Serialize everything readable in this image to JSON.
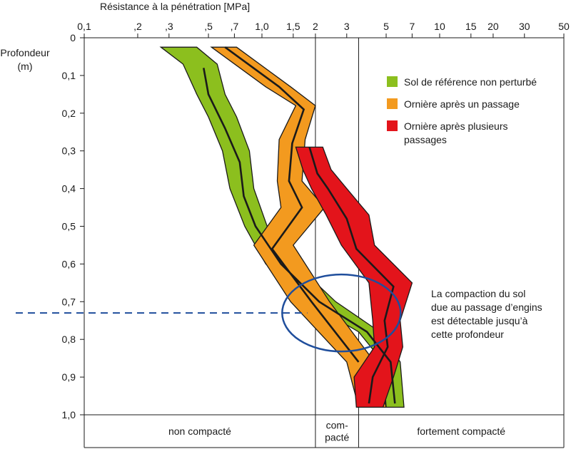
{
  "chart_data": {
    "type": "line",
    "x_axis": {
      "title": "Résistance à la pénétration [MPa]",
      "scale": "log",
      "range": [
        0.1,
        50
      ],
      "ticks": [
        {
          "value": 0.1,
          "label": "0,1"
        },
        {
          "value": 0.2,
          "label": ",2"
        },
        {
          "value": 0.3,
          "label": ",3"
        },
        {
          "value": 0.5,
          "label": ",5"
        },
        {
          "value": 0.7,
          "label": ",7"
        },
        {
          "value": 1.0,
          "label": "1,0"
        },
        {
          "value": 1.5,
          "label": "1,5"
        },
        {
          "value": 2,
          "label": "2"
        },
        {
          "value": 3,
          "label": "3"
        },
        {
          "value": 5,
          "label": "5"
        },
        {
          "value": 7,
          "label": "7"
        },
        {
          "value": 10,
          "label": "10"
        },
        {
          "value": 15,
          "label": "15"
        },
        {
          "value": 20,
          "label": "20"
        },
        {
          "value": 30,
          "label": "30"
        },
        {
          "value": 50,
          "label": "50"
        }
      ],
      "position": "top"
    },
    "y_axis": {
      "title": "Profondeur\n(m)",
      "title_lines": [
        "Profondeur",
        "(m)"
      ],
      "range": [
        0,
        1.0
      ],
      "inverted": true,
      "ticks": [
        {
          "value": 0,
          "label": "0"
        },
        {
          "value": 0.1,
          "label": "0,1"
        },
        {
          "value": 0.2,
          "label": "0,2"
        },
        {
          "value": 0.3,
          "label": "0,3"
        },
        {
          "value": 0.4,
          "label": "0,4"
        },
        {
          "value": 0.5,
          "label": "0,5"
        },
        {
          "value": 0.6,
          "label": "0,6"
        },
        {
          "value": 0.7,
          "label": "0,7"
        },
        {
          "value": 0.8,
          "label": "0,8"
        },
        {
          "value": 0.9,
          "label": "0,9"
        },
        {
          "value": 1.0,
          "label": "1,0"
        }
      ]
    },
    "grid": false,
    "series": [
      {
        "name": "Sol de référence non perturbé",
        "color": "#8cbf1e",
        "band": [
          {
            "depth": 0.025,
            "low": 0.27,
            "high": 0.43
          },
          {
            "depth": 0.07,
            "low": 0.36,
            "high": 0.56
          },
          {
            "depth": 0.15,
            "low": 0.43,
            "high": 0.62
          },
          {
            "depth": 0.21,
            "low": 0.5,
            "high": 0.72
          },
          {
            "depth": 0.3,
            "low": 0.6,
            "high": 0.85
          },
          {
            "depth": 0.4,
            "low": 0.66,
            "high": 0.9
          },
          {
            "depth": 0.5,
            "low": 0.8,
            "high": 1.07
          },
          {
            "depth": 0.6,
            "low": 1.05,
            "high": 1.55
          },
          {
            "depth": 0.7,
            "low": 1.8,
            "high": 2.6
          },
          {
            "depth": 0.78,
            "low": 3.5,
            "high": 4.6
          },
          {
            "depth": 0.86,
            "low": 4.8,
            "high": 6.0
          },
          {
            "depth": 0.98,
            "low": 5.0,
            "high": 6.3
          }
        ],
        "mean": [
          {
            "depth": 0.08,
            "value": 0.47
          },
          {
            "depth": 0.15,
            "value": 0.5
          },
          {
            "depth": 0.24,
            "value": 0.62
          },
          {
            "depth": 0.33,
            "value": 0.75
          },
          {
            "depth": 0.42,
            "value": 0.79
          },
          {
            "depth": 0.5,
            "value": 0.92
          },
          {
            "depth": 0.6,
            "value": 1.28
          },
          {
            "depth": 0.7,
            "value": 2.1
          },
          {
            "depth": 0.78,
            "value": 3.9
          },
          {
            "depth": 0.86,
            "value": 5.3
          },
          {
            "depth": 0.97,
            "value": 5.6
          }
        ]
      },
      {
        "name": "Ornière après un passage",
        "color": "#f39a1f",
        "band": [
          {
            "depth": 0.025,
            "low": 0.52,
            "high": 0.72
          },
          {
            "depth": 0.13,
            "low": 1.05,
            "high": 1.45
          },
          {
            "depth": 0.18,
            "low": 1.55,
            "high": 2.0
          },
          {
            "depth": 0.27,
            "low": 1.25,
            "high": 1.75
          },
          {
            "depth": 0.38,
            "low": 1.22,
            "high": 1.68
          },
          {
            "depth": 0.45,
            "low": 1.28,
            "high": 2.25
          },
          {
            "depth": 0.55,
            "low": 0.9,
            "high": 1.5
          },
          {
            "depth": 0.7,
            "low": 1.45,
            "high": 2.4
          },
          {
            "depth": 0.86,
            "low": 3.0,
            "high": 4.3
          },
          {
            "depth": 0.98,
            "low": 3.5,
            "high": 5.0
          }
        ],
        "mean": [
          {
            "depth": 0.025,
            "value": 0.62
          },
          {
            "depth": 0.13,
            "value": 1.25
          },
          {
            "depth": 0.19,
            "value": 1.72
          },
          {
            "depth": 0.28,
            "value": 1.48
          },
          {
            "depth": 0.38,
            "value": 1.42
          },
          {
            "depth": 0.45,
            "value": 1.68
          },
          {
            "depth": 0.56,
            "value": 1.14
          },
          {
            "depth": 0.7,
            "value": 1.9
          },
          {
            "depth": 0.86,
            "value": 3.5
          }
        ]
      },
      {
        "name": "Ornière après plusieurs passages",
        "color": "#e3141b",
        "band": [
          {
            "depth": 0.29,
            "low": 1.55,
            "high": 2.2
          },
          {
            "depth": 0.35,
            "low": 1.7,
            "high": 2.45
          },
          {
            "depth": 0.4,
            "low": 1.9,
            "high": 3.0
          },
          {
            "depth": 0.47,
            "low": 2.3,
            "high": 4.0
          },
          {
            "depth": 0.55,
            "low": 2.8,
            "high": 4.3
          },
          {
            "depth": 0.65,
            "low": 4.0,
            "high": 7.0
          },
          {
            "depth": 0.75,
            "low": 4.2,
            "high": 6.0
          },
          {
            "depth": 0.82,
            "low": 4.3,
            "high": 6.2
          },
          {
            "depth": 0.9,
            "low": 3.3,
            "high": 5.5
          },
          {
            "depth": 0.98,
            "low": 3.4,
            "high": 4.8
          }
        ],
        "mean": [
          {
            "depth": 0.29,
            "value": 1.85
          },
          {
            "depth": 0.36,
            "value": 2.05
          },
          {
            "depth": 0.4,
            "value": 2.35
          },
          {
            "depth": 0.48,
            "value": 3.0
          },
          {
            "depth": 0.56,
            "value": 3.4
          },
          {
            "depth": 0.66,
            "value": 5.5
          },
          {
            "depth": 0.75,
            "value": 4.9
          },
          {
            "depth": 0.82,
            "value": 5.1
          },
          {
            "depth": 0.9,
            "value": 4.2
          },
          {
            "depth": 0.97,
            "value": 4.0
          }
        ]
      }
    ],
    "legend": {
      "placement": "top-right",
      "items": [
        {
          "label": "Sol de référence non perturbé",
          "color": "#8cbf1e"
        },
        {
          "label": "Ornière après un passage",
          "color": "#f39a1f"
        },
        {
          "label": "Ornière après plusieurs passages",
          "color": "#e3141b"
        }
      ]
    },
    "zones": [
      {
        "lines": [
          "non compacté"
        ],
        "from": 0.1,
        "to": 2
      },
      {
        "lines": [
          "com-",
          "pacté"
        ],
        "from": 2,
        "to": 3.5
      },
      {
        "lines": [
          "fortement compacté"
        ],
        "from": 3.5,
        "to": 50
      }
    ],
    "zone_boundaries": [
      2,
      3.5
    ],
    "reference_depth": 0.73,
    "annotation": {
      "lines": [
        "La compaction du sol",
        "due au passage d’engins",
        "est détectable jusqu’à",
        "cette profondeur"
      ],
      "ellipse_center": {
        "value": 2.8,
        "depth": 0.73
      },
      "color": "#1f4e9c"
    }
  }
}
